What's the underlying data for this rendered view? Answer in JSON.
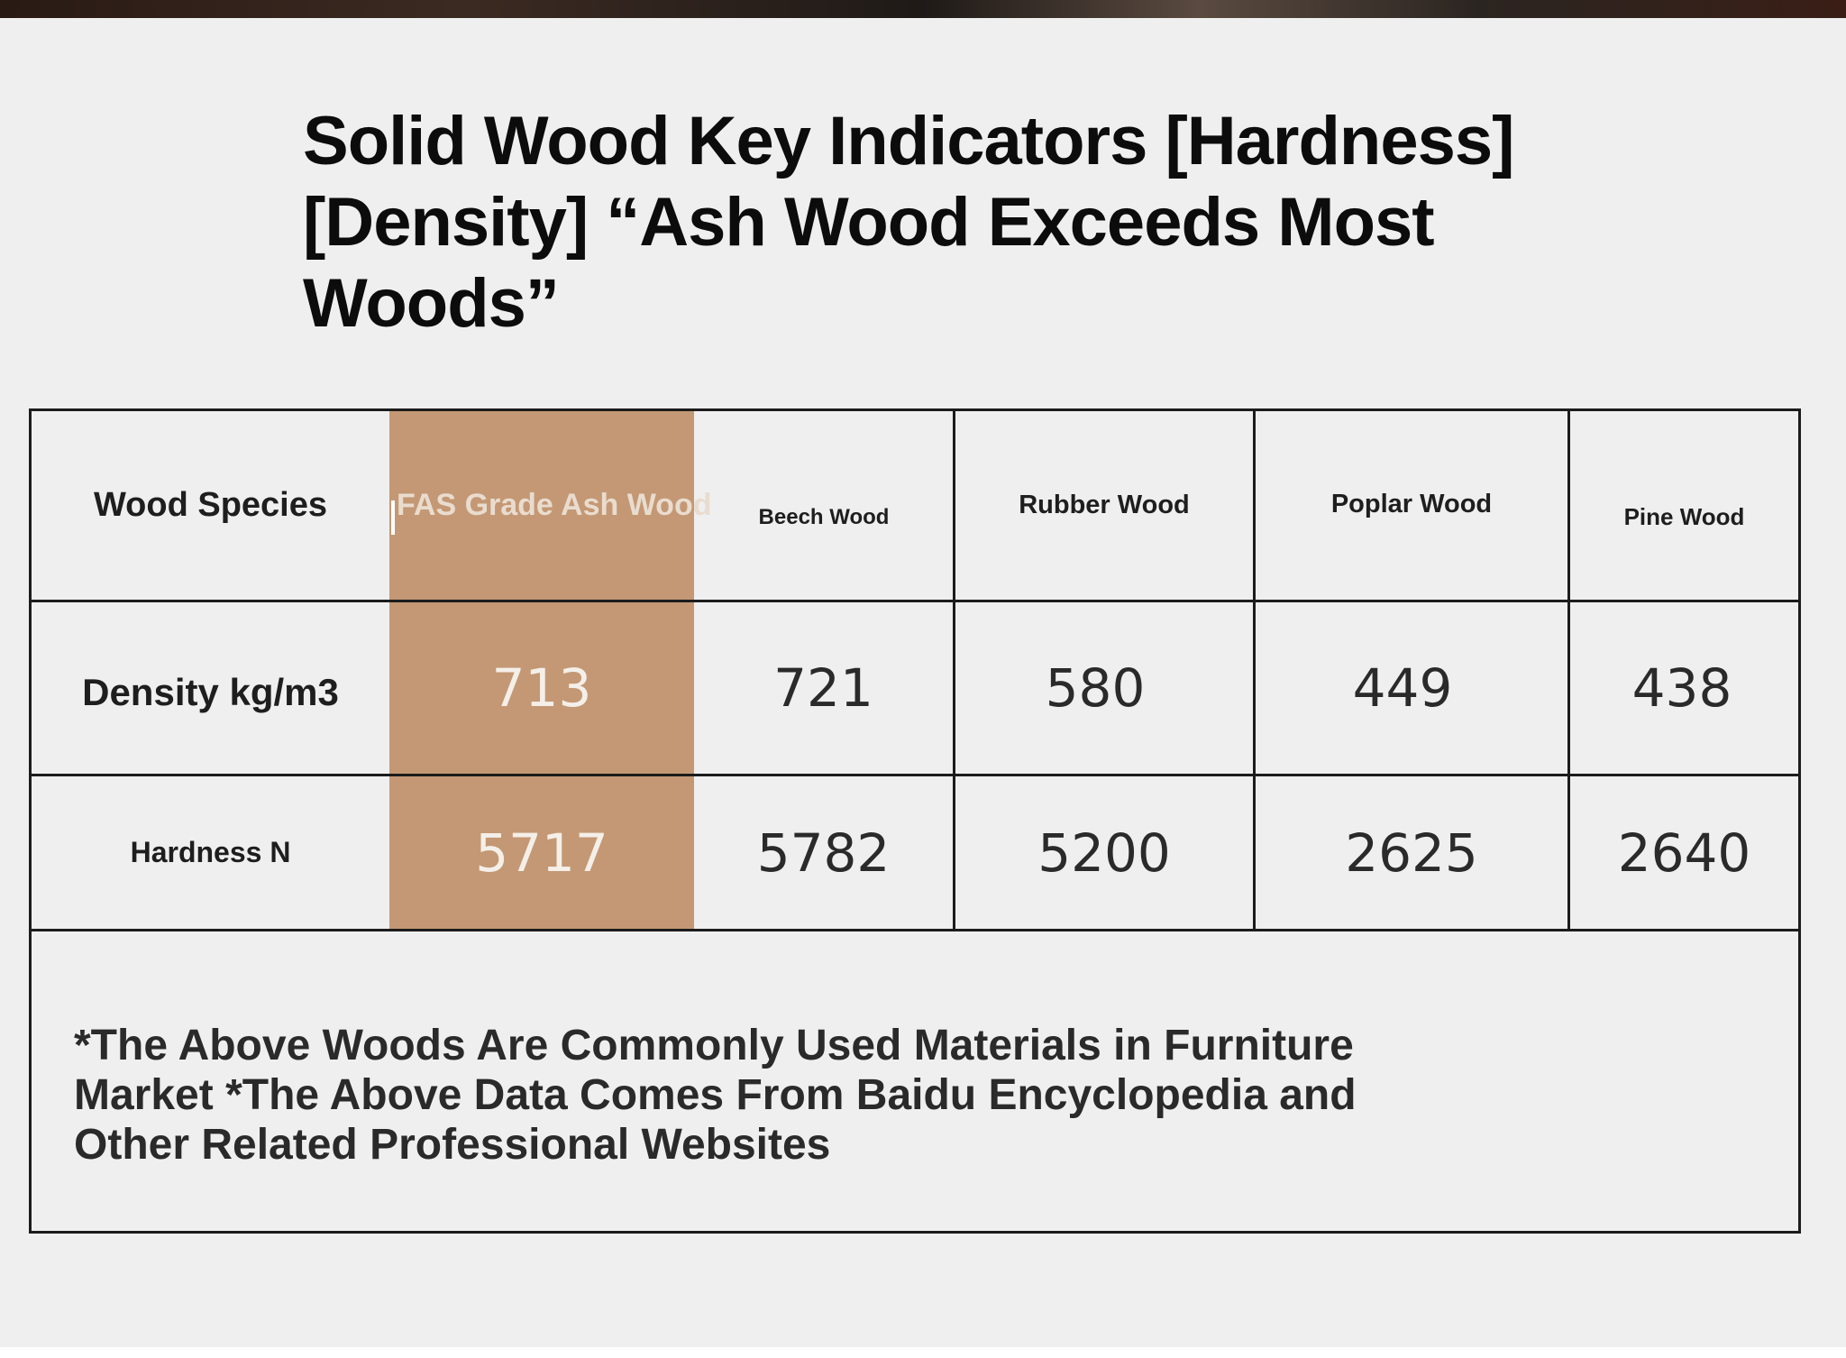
{
  "title_lines": [
    "Solid Wood Key Indicators [Hardness]",
    "[Density] “Ash Wood Exceeds Most",
    "Woods”"
  ],
  "table": {
    "corner_label": "Wood Species",
    "columns": [
      "FAS Grade Ash Wood",
      "Beech Wood",
      "Rubber Wood",
      "Poplar Wood",
      "Pine Wood"
    ],
    "rows": [
      {
        "label": "Density kg/m3",
        "values": [
          "713",
          "721",
          "580",
          "449",
          "438"
        ]
      },
      {
        "label": "Hardness N",
        "values": [
          "5717",
          "5782",
          "5200",
          "2625",
          "2640"
        ]
      }
    ],
    "highlight_color": "#c49874"
  },
  "footnote_lines": [
    "*The Above Woods Are Commonly Used Materials in Furniture",
    "Market *The Above Data Comes From Baidu Encyclopedia and",
    "Other Related Professional Websites"
  ]
}
